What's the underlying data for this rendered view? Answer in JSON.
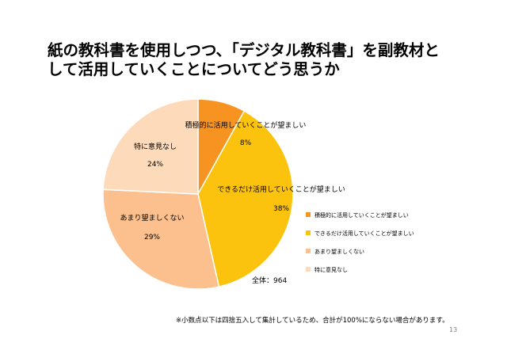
{
  "page": {
    "title_line1": "紙の教科書を使用しつつ、「デジタル教科書」を副教材と",
    "title_line2": "して活用していくことについてどう思うか",
    "note": "※小数点以下は四捨五入して集計しているため、合計が100%にならない場合があります。",
    "page_number": "13"
  },
  "chart_data": {
    "type": "pie",
    "total_label": "全体：964",
    "start_angle_deg": 0,
    "direction": "clockwise",
    "legend_position": "right",
    "slices": [
      {
        "label": "積極的に活用していくことが望ましい",
        "value": 8,
        "value_label": "8%",
        "color": "#f79421"
      },
      {
        "label": "できるだけ活用していくことが望ましい",
        "value": 38,
        "value_label": "38%",
        "color": "#fbc20e"
      },
      {
        "label": "あまり望ましくない",
        "value": 29,
        "value_label": "29%",
        "color": "#fcc08e"
      },
      {
        "label": "特に意見なし",
        "value": 24,
        "value_label": "24%",
        "color": "#fddab9"
      }
    ]
  }
}
